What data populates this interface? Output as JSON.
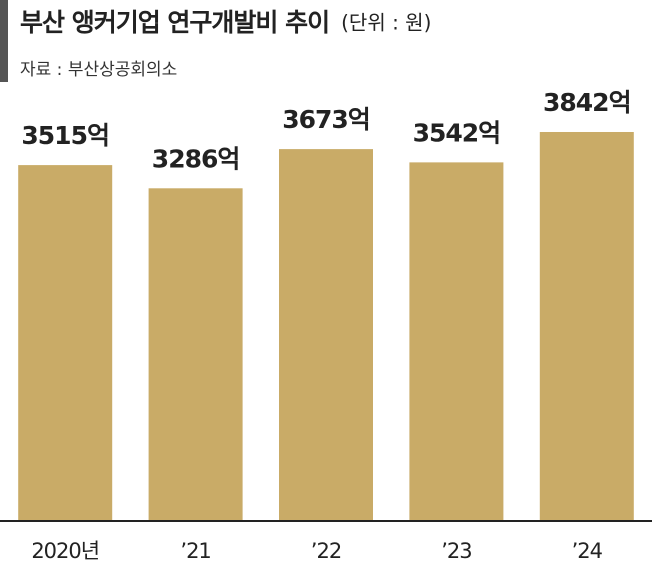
{
  "chart_data": {
    "type": "bar",
    "title": "부산 앵커기업 연구개발비 추이",
    "unit": "(단위 : 원)",
    "source": "자료 : 부산상공회의소",
    "categories": [
      "2020년",
      "’21",
      "’22",
      "’23",
      "’24"
    ],
    "values": [
      3515,
      3286,
      3673,
      3542,
      3842
    ],
    "value_labels": [
      "3515억",
      "3286억",
      "3673억",
      "3542억",
      "3842억"
    ],
    "color": "#c9ab67",
    "ylim": [
      0,
      4000
    ]
  }
}
